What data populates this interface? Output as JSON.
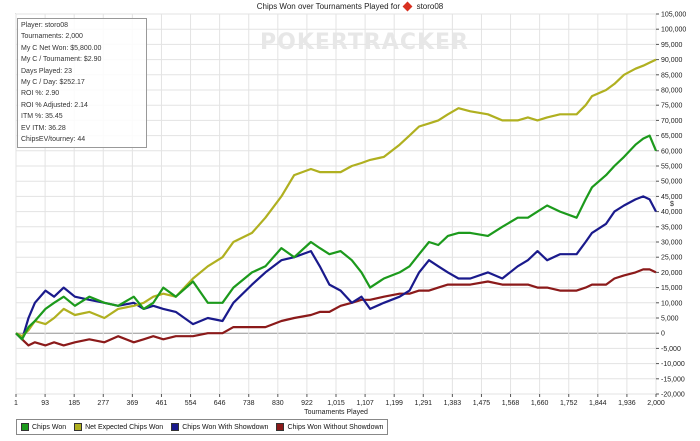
{
  "chart_data": {
    "type": "line",
    "title": "Chips Won over Tournaments Played for",
    "player": "storo08",
    "watermark": "POKERTRACKER",
    "xlabel": "Tournaments Played",
    "ylabel": "$",
    "xlim": [
      1,
      2000
    ],
    "ylim": [
      -20000,
      105000
    ],
    "x_ticks": [
      "1",
      "93",
      "185",
      "277",
      "369",
      "461",
      "554",
      "646",
      "738",
      "830",
      "922",
      "1,015",
      "1,107",
      "1,199",
      "1,291",
      "1,383",
      "1,475",
      "1,568",
      "1,660",
      "1,752",
      "1,844",
      "1,936",
      "2,000"
    ],
    "y_ticks": [
      "105,000",
      "100,000",
      "95,000",
      "90,000",
      "85,000",
      "80,000",
      "75,000",
      "70,000",
      "65,000",
      "60,000",
      "55,000",
      "50,000",
      "45,000",
      "40,000",
      "35,000",
      "30,000",
      "25,000",
      "20,000",
      "15,000",
      "10,000",
      "5,000",
      "0",
      "-5,000",
      "-10,000",
      "-15,000",
      "-20,000"
    ],
    "grid": true,
    "legend_position": "bottom-left",
    "stats": [
      "Player: storo08",
      "Tournaments: 2,000",
      "My C Net Won: $5,800.00",
      "My C / Tournament: $2.90",
      "Days Played: 23",
      "My C / Day: $252.17",
      "ROI %: 2.90",
      "ROI % Adjusted: 2.14",
      "ITM %: 35.45",
      "EV ITM: 36.28",
      "ChipsEV/tourney: 44"
    ],
    "series": [
      {
        "name": "Chips Won",
        "color": "#1c9a1c",
        "x": [
          1,
          20,
          40,
          60,
          93,
          120,
          150,
          185,
          230,
          277,
          320,
          369,
          400,
          430,
          461,
          500,
          554,
          600,
          646,
          680,
          738,
          780,
          830,
          870,
          922,
          950,
          980,
          1015,
          1050,
          1080,
          1107,
          1150,
          1199,
          1230,
          1260,
          1291,
          1320,
          1350,
          1383,
          1420,
          1475,
          1520,
          1568,
          1600,
          1630,
          1660,
          1700,
          1752,
          1780,
          1800,
          1844,
          1870,
          1900,
          1936,
          1960,
          1980,
          2000
        ],
        "y": [
          0,
          -2000,
          2000,
          4000,
          8000,
          10000,
          12000,
          9000,
          12000,
          10000,
          9000,
          12000,
          8000,
          10000,
          15000,
          12000,
          17000,
          10000,
          10000,
          15000,
          20000,
          22000,
          28000,
          25000,
          30000,
          28000,
          26000,
          27000,
          24000,
          20000,
          15000,
          18000,
          20000,
          22000,
          26000,
          30000,
          29000,
          32000,
          33000,
          33000,
          32000,
          35000,
          38000,
          38000,
          40000,
          42000,
          40000,
          38000,
          44000,
          48000,
          52000,
          55000,
          58000,
          62000,
          64000,
          65000,
          60000
        ]
      },
      {
        "name": "Net Expected Chips Won",
        "color": "#b0b020",
        "x": [
          1,
          20,
          40,
          60,
          93,
          120,
          150,
          185,
          230,
          277,
          320,
          369,
          400,
          430,
          461,
          500,
          554,
          600,
          646,
          680,
          738,
          780,
          830,
          870,
          922,
          950,
          980,
          1015,
          1050,
          1080,
          1107,
          1150,
          1199,
          1230,
          1260,
          1291,
          1320,
          1350,
          1383,
          1420,
          1475,
          1520,
          1568,
          1600,
          1630,
          1660,
          1700,
          1752,
          1780,
          1800,
          1844,
          1870,
          1900,
          1936,
          1960,
          1980,
          2000
        ],
        "y": [
          0,
          -1000,
          1000,
          4000,
          3000,
          5000,
          8000,
          6000,
          7000,
          5000,
          8000,
          9000,
          10000,
          12000,
          13000,
          12000,
          18000,
          22000,
          25000,
          30000,
          33000,
          38000,
          45000,
          52000,
          54000,
          53000,
          53000,
          53000,
          55000,
          56000,
          57000,
          58000,
          62000,
          65000,
          68000,
          69000,
          70000,
          72000,
          74000,
          73000,
          72000,
          70000,
          70000,
          71000,
          70000,
          71000,
          72000,
          72000,
          75000,
          78000,
          80000,
          82000,
          85000,
          87000,
          88000,
          89000,
          90000
        ]
      },
      {
        "name": "Chips Won With Showdown",
        "color": "#1a1a8c",
        "x": [
          1,
          20,
          40,
          60,
          93,
          120,
          150,
          185,
          230,
          277,
          320,
          369,
          400,
          430,
          461,
          500,
          554,
          600,
          646,
          680,
          738,
          780,
          830,
          870,
          922,
          950,
          980,
          1015,
          1050,
          1080,
          1107,
          1150,
          1199,
          1230,
          1260,
          1291,
          1320,
          1350,
          1383,
          1420,
          1475,
          1520,
          1568,
          1600,
          1630,
          1660,
          1700,
          1752,
          1780,
          1800,
          1844,
          1870,
          1900,
          1936,
          1960,
          1980,
          2000
        ],
        "y": [
          0,
          -2000,
          5000,
          10000,
          14000,
          12000,
          15000,
          12000,
          11000,
          10000,
          9000,
          10000,
          8000,
          9000,
          8000,
          7000,
          3000,
          5000,
          4000,
          10000,
          16000,
          20000,
          24000,
          25000,
          27000,
          22000,
          16000,
          14000,
          10000,
          12000,
          8000,
          10000,
          12000,
          14000,
          20000,
          24000,
          22000,
          20000,
          18000,
          18000,
          20000,
          18000,
          22000,
          24000,
          27000,
          24000,
          26000,
          26000,
          30000,
          33000,
          36000,
          40000,
          42000,
          44000,
          45000,
          44000,
          40000
        ]
      },
      {
        "name": "Chips Won Without Showdown",
        "color": "#8b1a1a",
        "x": [
          1,
          20,
          40,
          60,
          93,
          120,
          150,
          185,
          230,
          277,
          320,
          369,
          400,
          430,
          461,
          500,
          554,
          600,
          646,
          680,
          738,
          780,
          830,
          870,
          922,
          950,
          980,
          1015,
          1050,
          1080,
          1107,
          1150,
          1199,
          1230,
          1260,
          1291,
          1320,
          1350,
          1383,
          1420,
          1475,
          1520,
          1568,
          1600,
          1630,
          1660,
          1700,
          1752,
          1780,
          1800,
          1844,
          1870,
          1900,
          1936,
          1960,
          1980,
          2000
        ],
        "y": [
          0,
          -2000,
          -4000,
          -3000,
          -4000,
          -3000,
          -4000,
          -3000,
          -2000,
          -3000,
          -1000,
          -3000,
          -2000,
          -1000,
          -2000,
          -1000,
          -1000,
          0,
          0,
          2000,
          2000,
          2000,
          4000,
          5000,
          6000,
          7000,
          7000,
          9000,
          10000,
          11000,
          11000,
          12000,
          13000,
          13000,
          14000,
          14000,
          15000,
          16000,
          16000,
          16000,
          17000,
          16000,
          16000,
          16000,
          15000,
          15000,
          14000,
          14000,
          15000,
          16000,
          16000,
          18000,
          19000,
          20000,
          21000,
          21000,
          20000
        ]
      }
    ]
  }
}
